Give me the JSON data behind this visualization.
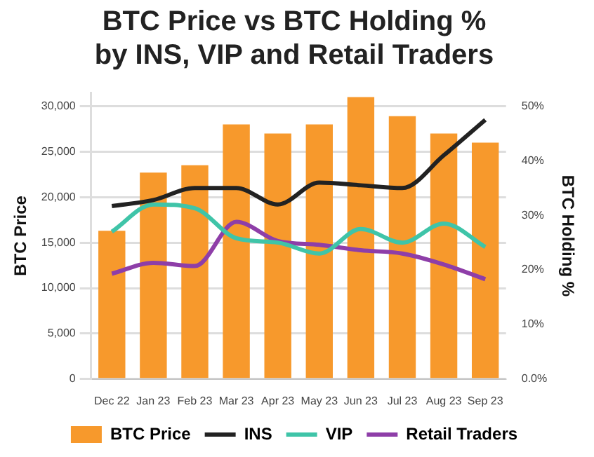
{
  "chart_data": {
    "type": "bar",
    "title": "BTC Price vs BTC Holding %\nby INS, VIP and Retail Traders",
    "ylabel": "BTC Price",
    "y2label": "BTC Holding %",
    "categories": [
      "Dec 22",
      "Jan 23",
      "Feb 23",
      "Mar 23",
      "Apr 23",
      "May 23",
      "Jun 23",
      "Jul 23",
      "Aug 23",
      "Sep 23"
    ],
    "series": [
      {
        "name": "BTC Price",
        "color": "#f7992c",
        "values": [
          16300,
          22700,
          23500,
          28000,
          27000,
          28000,
          31000,
          28900,
          27000,
          26000
        ]
      },
      {
        "name": "INS",
        "type": "line",
        "axis": "y2",
        "color": "#222222",
        "values": [
          31.7,
          32.8,
          35,
          35,
          32,
          36,
          35.5,
          35,
          41,
          47.5
        ]
      },
      {
        "name": "VIP",
        "type": "line",
        "axis": "y2",
        "color": "#3fc4a8",
        "values": [
          27,
          32,
          31.3,
          25.8,
          25,
          23,
          27.5,
          25,
          28.5,
          24.2
        ]
      },
      {
        "name": "Retail Traders",
        "type": "line",
        "axis": "y2",
        "color": "#8e3ea8",
        "values": [
          19.3,
          21.3,
          20.7,
          28.8,
          25.3,
          24.6,
          23.6,
          23,
          21,
          18.3
        ]
      }
    ],
    "ylim": [
      0,
      31500
    ],
    "yticks": [
      {
        "value": 0,
        "label": "0"
      },
      {
        "value": 5000,
        "label": "5,000"
      },
      {
        "value": 10000,
        "label": "10,000"
      },
      {
        "value": 15000,
        "label": "15,000"
      },
      {
        "value": 20000,
        "label": "20,000"
      },
      {
        "value": 25000,
        "label": "25,000"
      },
      {
        "value": 30000,
        "label": "30,000"
      }
    ],
    "y2lim": [
      0,
      52.5
    ],
    "y2ticks": [
      {
        "value": 0,
        "label": "0.0%"
      },
      {
        "value": 10,
        "label": "10%"
      },
      {
        "value": 20,
        "label": "20%"
      },
      {
        "value": 30,
        "label": "30%"
      },
      {
        "value": 40,
        "label": "40%"
      },
      {
        "value": 50,
        "label": "50%"
      }
    ],
    "grid": "y",
    "legend": "bottom",
    "marker": "none"
  }
}
